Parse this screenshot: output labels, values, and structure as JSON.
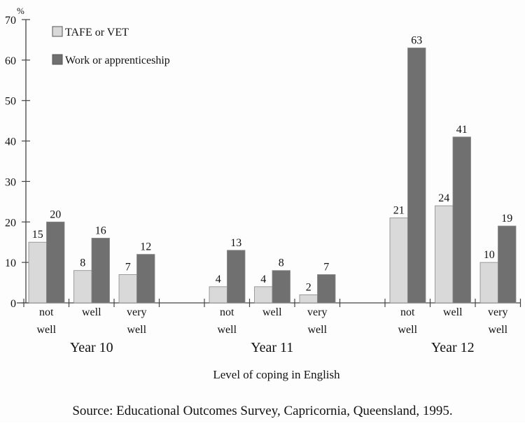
{
  "chart_data": {
    "type": "bar",
    "ylabel": "%",
    "xlabel": "Level of coping in English",
    "ylim": [
      0,
      70
    ],
    "yticks": [
      0,
      10,
      20,
      30,
      40,
      50,
      60,
      70
    ],
    "groups": [
      {
        "name": "Year 10",
        "categories": [
          [
            "not",
            "well"
          ],
          [
            "well"
          ],
          [
            "very",
            "well"
          ]
        ]
      },
      {
        "name": "Year 11",
        "categories": [
          [
            "not",
            "well"
          ],
          [
            "well"
          ],
          [
            "very",
            "well"
          ]
        ]
      },
      {
        "name": "Year 12",
        "categories": [
          [
            "not",
            "well"
          ],
          [
            "well"
          ],
          [
            "very",
            "well"
          ]
        ]
      }
    ],
    "series": [
      {
        "name": "TAFE or VET",
        "color": "#d9d9d9",
        "values": [
          15,
          8,
          7,
          4,
          4,
          2,
          21,
          24,
          10
        ]
      },
      {
        "name": "Work or apprenticeship",
        "color": "#707070",
        "values": [
          20,
          16,
          12,
          13,
          8,
          7,
          63,
          41,
          19
        ]
      }
    ],
    "legend_position": "top-left",
    "grid": false
  },
  "source": "Source: Educational Outcomes Survey, Capricornia, Queensland, 1995."
}
